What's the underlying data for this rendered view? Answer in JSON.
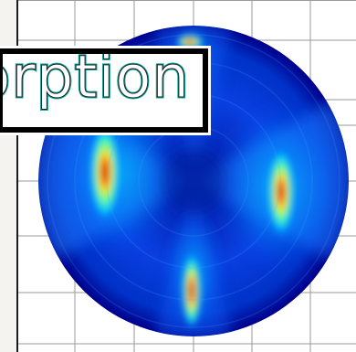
{
  "label": {
    "text": "orption"
  },
  "image": {
    "name": "polar-absorption-diffraction-map",
    "colormap": [
      "#00008a",
      "#0030ff",
      "#00c8ff",
      "#60ffa0",
      "#ffe000",
      "#ff3000",
      "#a00000"
    ]
  }
}
